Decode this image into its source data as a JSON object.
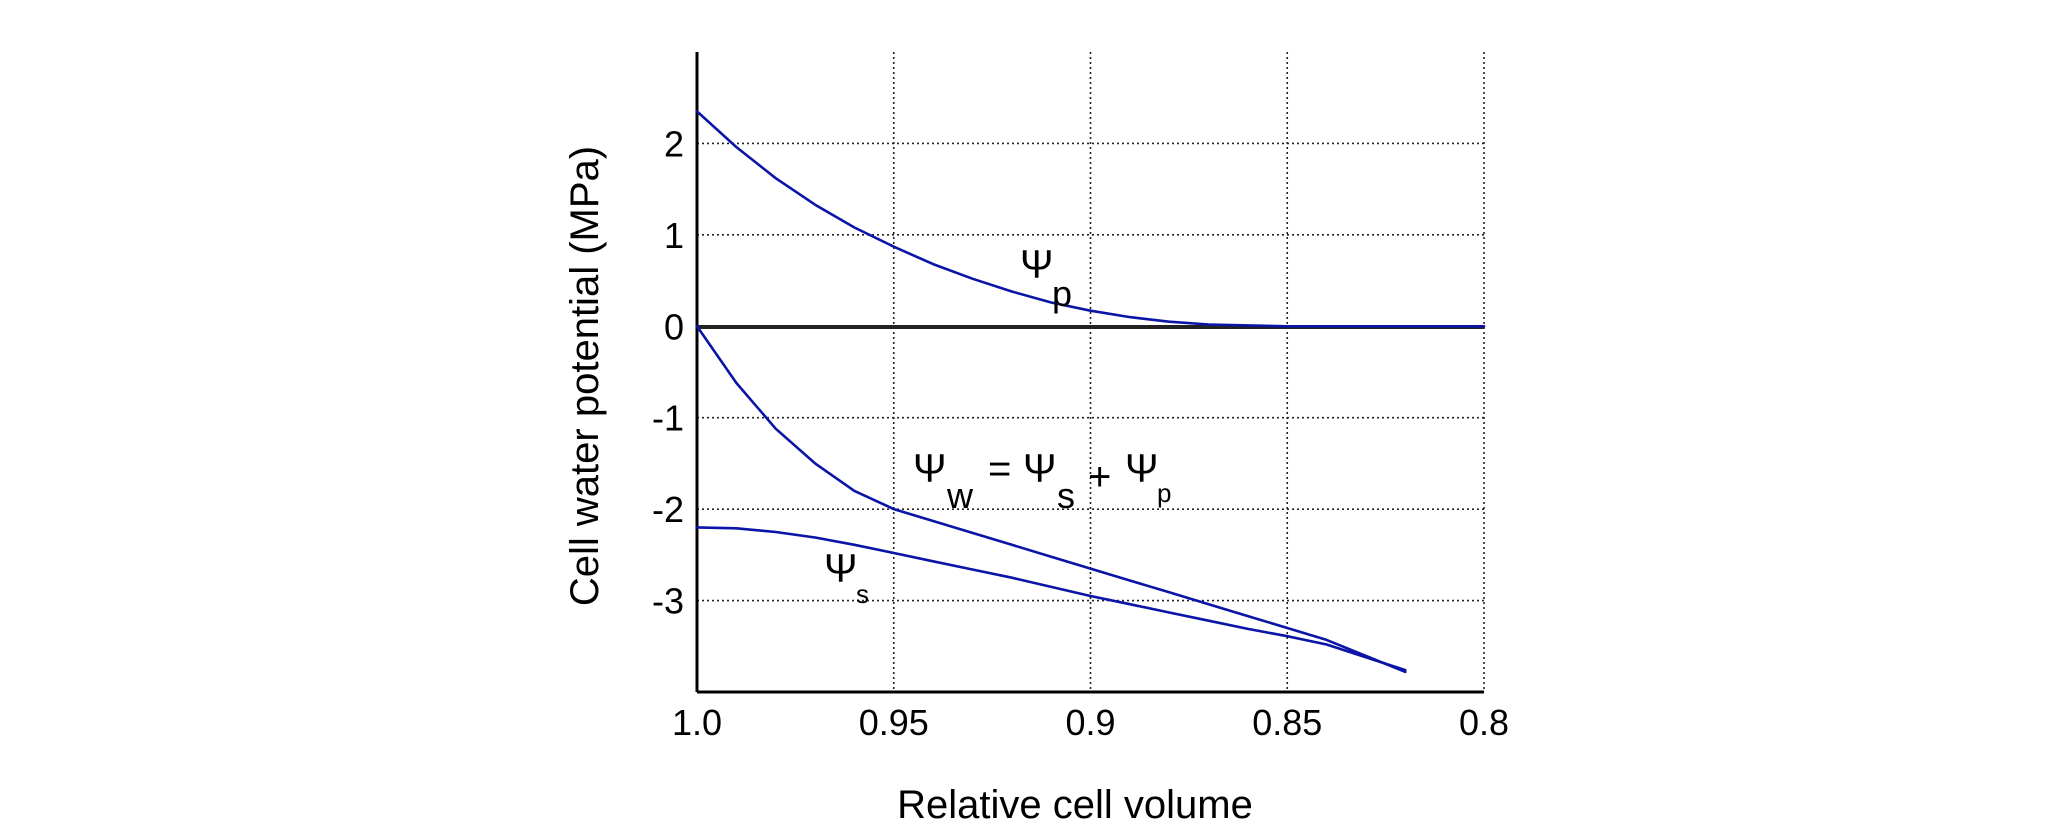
{
  "chart_data": {
    "type": "line",
    "title": "",
    "xlabel": "Relative cell volume",
    "ylabel": "Cell water potential (MPa)",
    "xlim": [
      1.0,
      0.8
    ],
    "ylim": [
      -4,
      3
    ],
    "x_reversed": true,
    "x_ticks": [
      "1.0",
      "0.95",
      "0.9",
      "0.85",
      "0.8"
    ],
    "y_ticks": [
      "2",
      "1",
      "0",
      "-1",
      "-2",
      "-3"
    ],
    "grid": true,
    "series_color": "#0a14a6",
    "series": [
      {
        "x": [
          1.0,
          0.99,
          0.98,
          0.97,
          0.96,
          0.95,
          0.94,
          0.93,
          0.92,
          0.91,
          0.9,
          0.89,
          0.88,
          0.87,
          0.86,
          0.85,
          0.84,
          0.83,
          0.82,
          0.81,
          0.8
        ],
        "y": [
          2.35,
          1.96,
          1.62,
          1.33,
          1.08,
          0.87,
          0.68,
          0.52,
          0.38,
          0.26,
          0.17,
          0.1,
          0.05,
          0.02,
          0.01,
          0.0,
          0.0,
          0.0,
          0.0,
          0.0,
          0.0
        ]
      },
      {
        "x": [
          1.0,
          0.99,
          0.98,
          0.97,
          0.96,
          0.95,
          0.94,
          0.93,
          0.92,
          0.91,
          0.9,
          0.89,
          0.88,
          0.87,
          0.86,
          0.85,
          0.84,
          0.82
        ],
        "y": [
          0.0,
          -0.62,
          -1.12,
          -1.5,
          -1.8,
          -2.0,
          -2.13,
          -2.26,
          -2.39,
          -2.52,
          -2.65,
          -2.78,
          -2.91,
          -3.04,
          -3.17,
          -3.3,
          -3.43,
          -3.78
        ]
      },
      {
        "x": [
          1.0,
          0.99,
          0.98,
          0.97,
          0.96,
          0.95,
          0.94,
          0.93,
          0.92,
          0.91,
          0.9,
          0.89,
          0.88,
          0.87,
          0.86,
          0.85,
          0.84,
          0.82
        ],
        "y": [
          -2.2,
          -2.21,
          -2.25,
          -2.31,
          -2.39,
          -2.48,
          -2.57,
          -2.66,
          -2.75,
          -2.85,
          -2.95,
          -3.04,
          -3.13,
          -3.22,
          -3.31,
          -3.39,
          -3.48,
          -3.76
        ]
      }
    ],
    "annotations": {
      "psi_p": {
        "main": "Ψ",
        "sub": "p"
      },
      "psi_w": {
        "psi1": "Ψ",
        "sub_w": "w",
        "eq": "=",
        "psi2": "Ψ",
        "sub_s": "s",
        "plus": "+",
        "psi3": "Ψ",
        "sub_p": "p"
      },
      "psi_s": {
        "main": "Ψ",
        "sub": "s"
      }
    }
  }
}
